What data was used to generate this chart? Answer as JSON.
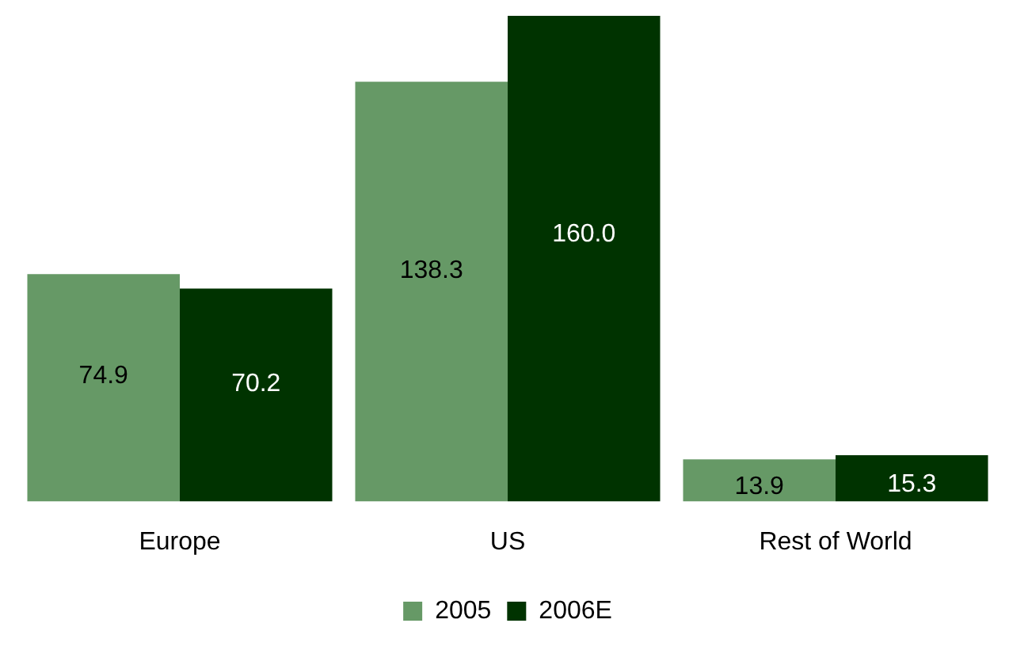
{
  "chart_data": {
    "type": "bar",
    "categories": [
      "Europe",
      "US",
      "Rest of World"
    ],
    "series": [
      {
        "name": "2005",
        "color": "#669966",
        "values": [
          74.9,
          138.3,
          13.9
        ],
        "value_labels": [
          "74.9",
          "138.3",
          "13.9"
        ]
      },
      {
        "name": "2006E",
        "color": "#003300",
        "values": [
          70.2,
          160.0,
          15.3
        ],
        "value_labels": [
          "70.2",
          "160.0",
          "15.3"
        ]
      }
    ],
    "legend": "bottom",
    "grid": false
  }
}
